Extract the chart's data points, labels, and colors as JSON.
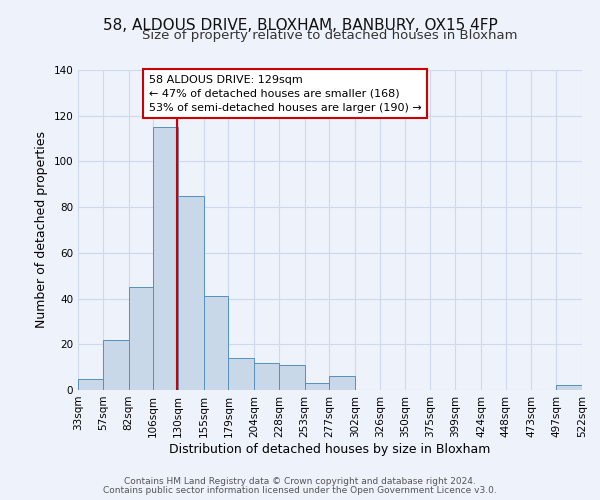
{
  "title": "58, ALDOUS DRIVE, BLOXHAM, BANBURY, OX15 4FP",
  "subtitle": "Size of property relative to detached houses in Bloxham",
  "xlabel": "Distribution of detached houses by size in Bloxham",
  "ylabel": "Number of detached properties",
  "bin_edges": [
    33,
    57,
    82,
    106,
    130,
    155,
    179,
    204,
    228,
    253,
    277,
    302,
    326,
    350,
    375,
    399,
    424,
    448,
    473,
    497,
    522
  ],
  "bar_heights": [
    5,
    22,
    45,
    115,
    85,
    41,
    14,
    12,
    11,
    3,
    6,
    0,
    0,
    0,
    0,
    0,
    0,
    0,
    0,
    2
  ],
  "bar_color": "#c8d8e8",
  "bar_edge_color": "#5590c0",
  "property_line_x": 129,
  "property_line_color": "#cc0000",
  "ylim": [
    0,
    140
  ],
  "yticks": [
    0,
    20,
    40,
    60,
    80,
    100,
    120,
    140
  ],
  "xtick_labels": [
    "33sqm",
    "57sqm",
    "82sqm",
    "106sqm",
    "130sqm",
    "155sqm",
    "179sqm",
    "204sqm",
    "228sqm",
    "253sqm",
    "277sqm",
    "302sqm",
    "326sqm",
    "350sqm",
    "375sqm",
    "399sqm",
    "424sqm",
    "448sqm",
    "473sqm",
    "497sqm",
    "522sqm"
  ],
  "annotation_line1": "58 ALDOUS DRIVE: 129sqm",
  "annotation_line2": "← 47% of detached houses are smaller (168)",
  "annotation_line3": "53% of semi-detached houses are larger (190) →",
  "footer_line1": "Contains HM Land Registry data © Crown copyright and database right 2024.",
  "footer_line2": "Contains public sector information licensed under the Open Government Licence v3.0.",
  "background_color": "#eef2fb",
  "grid_color": "#d0d8f0",
  "title_fontsize": 11,
  "subtitle_fontsize": 9.5,
  "tick_fontsize": 7.5,
  "ylabel_fontsize": 9,
  "xlabel_fontsize": 9,
  "footer_fontsize": 6.5
}
